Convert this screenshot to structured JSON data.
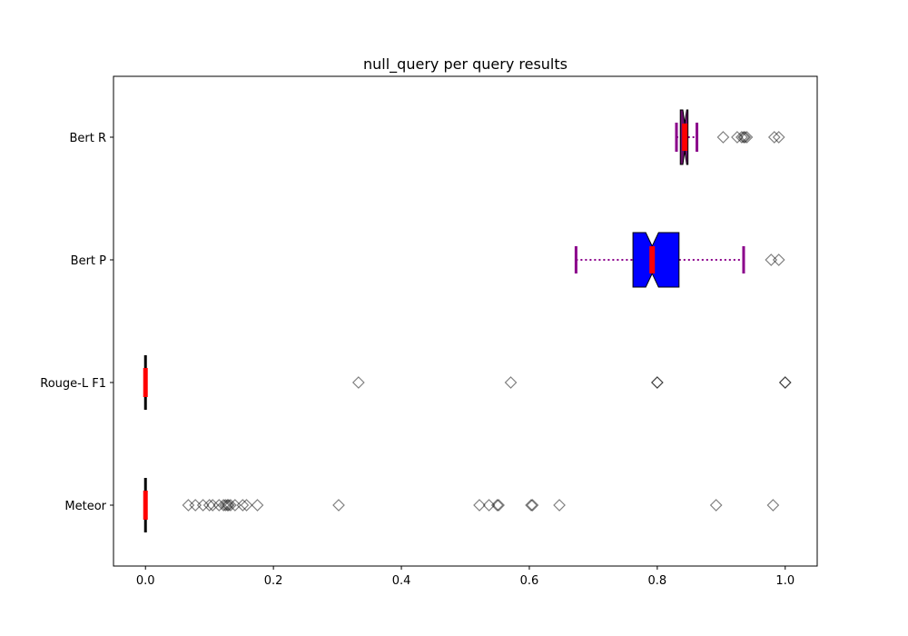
{
  "chart_data": {
    "type": "boxplot",
    "orientation": "horizontal",
    "title": "null_query per query results",
    "xlabel": "",
    "ylabel": "",
    "xlim": [
      -0.05,
      1.05
    ],
    "xticks": [
      "0.0",
      "0.2",
      "0.4",
      "0.6",
      "0.8",
      "1.0"
    ],
    "xtick_values": [
      0.0,
      0.2,
      0.4,
      0.6,
      0.8,
      1.0
    ],
    "grid": false,
    "categories": [
      "Meteor",
      "Rouge-L F1",
      "Bert P",
      "Bert R"
    ],
    "series": [
      {
        "name": "Meteor",
        "whisker_low": 0.0,
        "q1": 0.0,
        "median": 0.0,
        "q3": 0.0,
        "whisker_high": 0.0,
        "notch_low": 0.0,
        "notch_high": 0.0,
        "fliers": [
          0.067,
          0.078,
          0.09,
          0.1,
          0.105,
          0.115,
          0.122,
          0.125,
          0.128,
          0.13,
          0.133,
          0.14,
          0.152,
          0.158,
          0.175,
          0.302,
          0.522,
          0.537,
          0.55,
          0.552,
          0.603,
          0.605,
          0.647,
          0.892,
          0.981
        ]
      },
      {
        "name": "Rouge-L F1",
        "whisker_low": 0.0,
        "q1": 0.0,
        "median": 0.0,
        "q3": 0.0,
        "whisker_high": 0.0,
        "notch_low": 0.0,
        "notch_high": 0.0,
        "fliers": [
          0.333,
          0.571,
          0.8,
          0.8,
          1.0,
          1.0
        ]
      },
      {
        "name": "Bert P",
        "whisker_low": 0.673,
        "q1": 0.762,
        "median": 0.792,
        "q3": 0.834,
        "whisker_high": 0.935,
        "notch_low": 0.782,
        "notch_high": 0.802,
        "fliers": [
          0.978,
          0.99
        ]
      },
      {
        "name": "Bert R",
        "whisker_low": 0.83,
        "q1": 0.836,
        "median": 0.843,
        "q3": 0.848,
        "whisker_high": 0.862,
        "notch_low": 0.84,
        "notch_high": 0.846,
        "fliers": [
          0.903,
          0.925,
          0.932,
          0.935,
          0.937,
          0.94,
          0.983,
          0.99
        ]
      }
    ],
    "colors": {
      "bert_p_box": "#0000ff",
      "bert_r_box": "#6b0f6b",
      "median": "#ff0000",
      "whisker_bert": "#8b008b",
      "whisker_default": "#000000",
      "flier": "#000000"
    }
  }
}
